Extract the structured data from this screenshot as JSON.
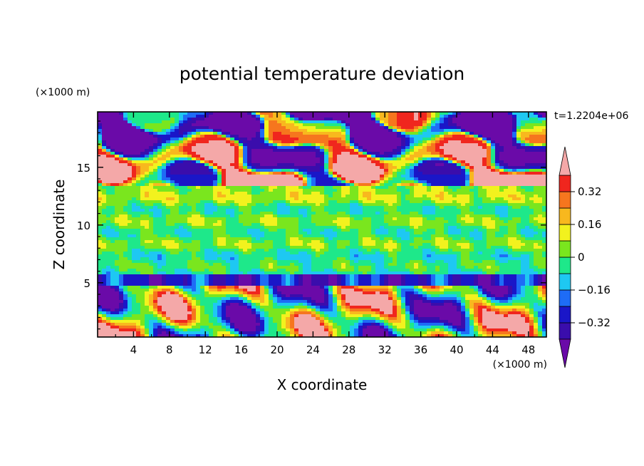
{
  "chart_data": {
    "type": "heatmap",
    "title": "potential temperature deviation",
    "xlabel": "X coordinate",
    "ylabel": "Z coordinate",
    "x_unit": "(×1000 m)",
    "y_unit": "(×1000 m)",
    "time_label": "t=1.2204e+06",
    "xlim": [
      0,
      50
    ],
    "ylim": [
      0.3,
      19.8
    ],
    "x_ticks": [
      4,
      8,
      12,
      16,
      20,
      24,
      28,
      32,
      36,
      40,
      44,
      48
    ],
    "y_ticks": [
      5,
      10,
      15
    ],
    "colorbar": {
      "levels": [
        -0.4,
        -0.32,
        -0.24,
        -0.16,
        -0.08,
        0,
        0.08,
        0.16,
        0.24,
        0.32,
        0.4
      ],
      "tick_labels": [
        "0.32",
        "0.16",
        "0",
        "−0.16",
        "−0.32"
      ],
      "tick_values": [
        0.32,
        0.16,
        0,
        -0.16,
        -0.32
      ],
      "colors": [
        "#6a0aa8",
        "#3a0dac",
        "#1a16c8",
        "#1e6cf6",
        "#1ec8f2",
        "#1ee88a",
        "#7ae61e",
        "#f2f21e",
        "#f8b81e",
        "#f6761e",
        "#f0261e",
        "#f4a8a8"
      ],
      "extend": "both"
    },
    "field_bands": [
      {
        "z_range": [
          17.5,
          19.8
        ],
        "description_value": -0.45
      },
      {
        "z_range": [
          13.5,
          17.5
        ],
        "description_value": 0.45
      },
      {
        "z_range": [
          6.0,
          13.5
        ],
        "description_value": 0.0
      },
      {
        "z_range": [
          5.0,
          6.0
        ],
        "description_value": -0.36
      },
      {
        "z_range": [
          0.3,
          5.0
        ],
        "description_value": 0.1
      }
    ]
  }
}
